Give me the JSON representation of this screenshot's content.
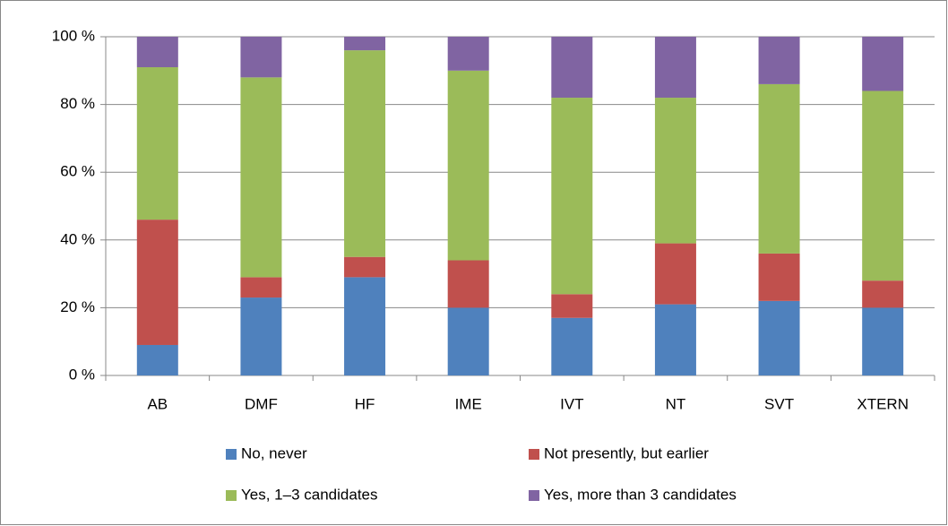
{
  "chart_data": {
    "type": "stacked_bar",
    "categories": [
      "AB",
      "DMF",
      "HF",
      "IME",
      "IVT",
      "NT",
      "SVT",
      "XTERN"
    ],
    "series": [
      {
        "name": "No, never",
        "color": "#4f81bd",
        "values": [
          9,
          23,
          29,
          20,
          17,
          21,
          22,
          20
        ]
      },
      {
        "name": "Not presently, but earlier",
        "color": "#c0504d",
        "values": [
          37,
          6,
          6,
          14,
          7,
          18,
          14,
          8
        ]
      },
      {
        "name": "Yes, 1–3 candidates",
        "color": "#9bbb59",
        "values": [
          45,
          59,
          61,
          56,
          58,
          43,
          50,
          56
        ]
      },
      {
        "name": "Yes, more than 3 candidates",
        "color": "#8064a2",
        "values": [
          9,
          12,
          4,
          10,
          18,
          18,
          14,
          16
        ]
      }
    ],
    "ylim": [
      0,
      100
    ],
    "yticks": [
      {
        "value": 0,
        "label": "0 %"
      },
      {
        "value": 20,
        "label": "20 %"
      },
      {
        "value": 40,
        "label": "40 %"
      },
      {
        "value": 60,
        "label": "60 %"
      },
      {
        "value": 80,
        "label": "80 %"
      },
      {
        "value": 100,
        "label": "100 %"
      }
    ],
    "grid": true,
    "legend": "bottom"
  }
}
